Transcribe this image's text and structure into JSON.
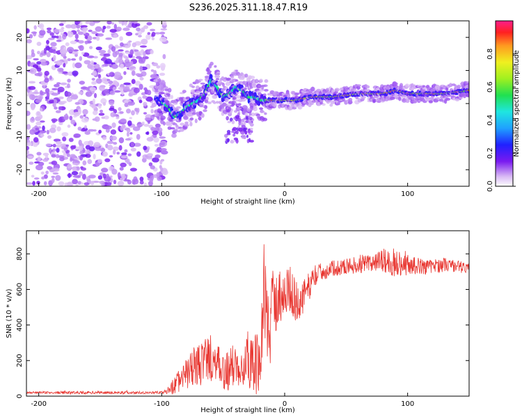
{
  "title": "S236.2025.311.18.47.R19",
  "chart_data": [
    {
      "type": "heatmap",
      "xlabel": "Height of straight line (km)",
      "ylabel": "Frequency (Hz)",
      "xlim": [
        -210,
        150
      ],
      "ylim": [
        -25,
        25
      ],
      "xticks": [
        -200,
        -100,
        0,
        100
      ],
      "yticks": [
        -20,
        -10,
        0,
        10,
        20
      ],
      "colorbar": {
        "label": "Normalized spectral amplitude",
        "range": [
          0,
          1
        ],
        "ticks": [
          0.0,
          0.2,
          0.4,
          0.6,
          0.8
        ],
        "tick_labels": [
          "0.0",
          "0.2",
          "0.4",
          "0.6",
          "0.8"
        ]
      },
      "ridge": {
        "x": [
          -105,
          -95,
          -90,
          -85,
          -80,
          -75,
          -70,
          -65,
          -60,
          -55,
          -50,
          -45,
          -40,
          -35,
          -30,
          -25,
          -20,
          -10,
          0,
          10,
          20,
          40,
          60,
          80,
          90,
          100,
          110,
          120,
          130,
          150
        ],
        "y": [
          2,
          -1,
          -4,
          -3,
          -1,
          0,
          1,
          3,
          7,
          5,
          2,
          3,
          5,
          4,
          2,
          2,
          1,
          1,
          1,
          1,
          2,
          2,
          3,
          3,
          4,
          3,
          3,
          3,
          3,
          4
        ]
      },
      "noise_region": [
        -210,
        -100
      ]
    },
    {
      "type": "line",
      "xlabel": "Height of straight line (km)",
      "ylabel": "SNR (10 * v/v)",
      "xlim": [
        -210,
        150
      ],
      "ylim": [
        0,
        930
      ],
      "xticks": [
        -200,
        -100,
        0,
        100
      ],
      "yticks": [
        0,
        200,
        400,
        600,
        800
      ],
      "color": "#e8352f",
      "series": [
        {
          "name": "SNR",
          "x": [
            -210,
            -180,
            -150,
            -120,
            -100,
            -95,
            -90,
            -85,
            -80,
            -75,
            -70,
            -65,
            -60,
            -55,
            -50,
            -45,
            -40,
            -35,
            -30,
            -25,
            -20,
            -17,
            -15,
            -12,
            -10,
            -5,
            0,
            5,
            10,
            15,
            20,
            25,
            30,
            40,
            50,
            60,
            70,
            80,
            90,
            100,
            110,
            120,
            130,
            140,
            150
          ],
          "y": [
            20,
            20,
            20,
            20,
            20,
            30,
            60,
            90,
            120,
            160,
            170,
            200,
            230,
            160,
            130,
            150,
            180,
            200,
            210,
            230,
            120,
            600,
            500,
            300,
            520,
            560,
            580,
            600,
            520,
            550,
            620,
            680,
            700,
            720,
            730,
            740,
            745,
            760,
            750,
            740,
            730,
            730,
            740,
            730,
            720
          ],
          "spread": [
            5,
            8,
            8,
            8,
            8,
            20,
            50,
            70,
            90,
            110,
            120,
            130,
            150,
            130,
            110,
            120,
            130,
            150,
            170,
            200,
            150,
            300,
            250,
            220,
            200,
            170,
            150,
            130,
            120,
            100,
            80,
            60,
            50,
            45,
            45,
            50,
            60,
            70,
            80,
            60,
            45,
            40,
            40,
            35,
            30
          ]
        }
      ]
    }
  ]
}
